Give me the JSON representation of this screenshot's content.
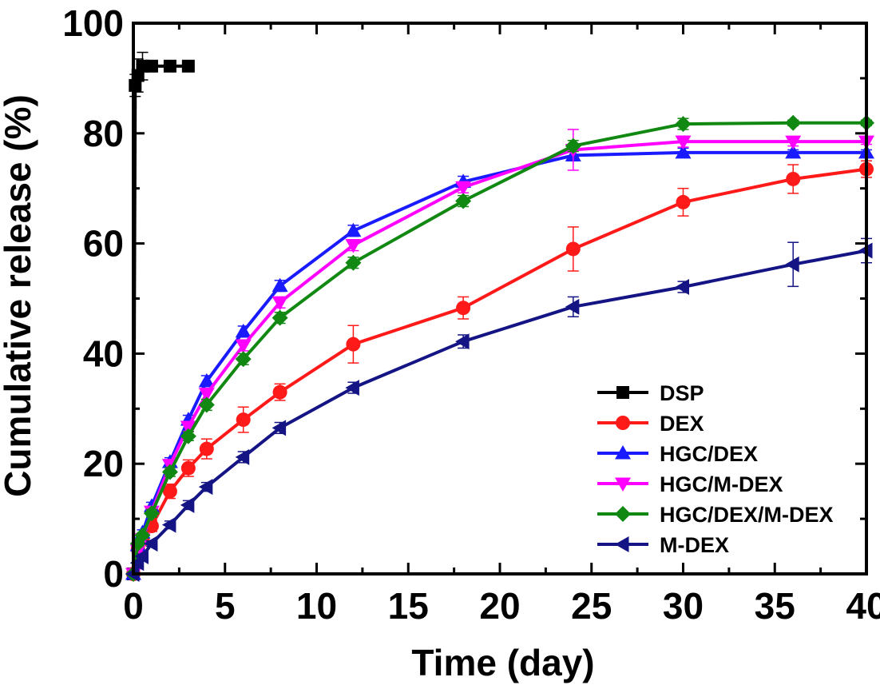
{
  "chart_data": {
    "type": "line",
    "title": "",
    "xlabel": "Time (day)",
    "ylabel": "Cumulative release (%)",
    "xlim": [
      0,
      40
    ],
    "ylim": [
      0,
      100
    ],
    "x_ticks": [
      0,
      5,
      10,
      15,
      20,
      25,
      30,
      35,
      40
    ],
    "y_ticks": [
      0,
      20,
      40,
      60,
      80,
      100
    ],
    "x_tick_labels": [
      "0",
      "5",
      "10",
      "15",
      "20",
      "25",
      "30",
      "35",
      "40"
    ],
    "y_tick_labels": [
      "0",
      "20",
      "40",
      "60",
      "80",
      "100"
    ],
    "grid": false,
    "legend_position": "bottom-right",
    "series": [
      {
        "name": "DSP",
        "color": "#000000",
        "marker": "square",
        "points": [
          [
            0,
            0
          ],
          [
            0.1,
            88.7
          ],
          [
            0.25,
            90.5
          ],
          [
            0.5,
            92.2
          ],
          [
            1,
            92.2
          ],
          [
            2,
            92.2
          ],
          [
            3,
            92.2
          ]
        ],
        "errors": [
          0,
          2,
          3,
          2.5,
          0.3,
          0.3,
          0.3
        ]
      },
      {
        "name": "DEX",
        "color": "#ff1a1a",
        "marker": "circle",
        "points": [
          [
            0,
            0
          ],
          [
            0.25,
            4.5
          ],
          [
            0.5,
            6.2
          ],
          [
            1,
            8.7
          ],
          [
            2,
            15
          ],
          [
            3,
            19.2
          ],
          [
            4,
            22.7
          ],
          [
            6,
            28
          ],
          [
            8,
            33
          ],
          [
            12,
            41.7
          ],
          [
            18,
            48.3
          ],
          [
            24,
            59
          ],
          [
            30,
            67.5
          ],
          [
            36,
            71.7
          ],
          [
            40,
            73.5
          ]
        ],
        "errors": [
          0,
          0.5,
          0.8,
          1,
          1.3,
          1.5,
          1.8,
          2.3,
          1.5,
          3.4,
          2,
          4,
          2.5,
          2.6,
          1.5
        ]
      },
      {
        "name": "HGC/DEX",
        "color": "#1a1aff",
        "marker": "triangle-up",
        "points": [
          [
            0,
            0
          ],
          [
            0.25,
            5.2
          ],
          [
            0.5,
            7.5
          ],
          [
            1,
            12.3
          ],
          [
            2,
            20.3
          ],
          [
            3,
            28
          ],
          [
            4,
            35
          ],
          [
            6,
            44
          ],
          [
            8,
            52.3
          ],
          [
            12,
            62.3
          ],
          [
            18,
            71.2
          ],
          [
            24,
            76
          ],
          [
            30,
            76.5
          ],
          [
            36,
            76.5
          ],
          [
            40,
            76.5
          ]
        ],
        "errors": [
          0,
          0.5,
          0.5,
          0.7,
          0.8,
          0.8,
          1,
          1,
          1,
          1,
          1,
          1,
          0.8,
          0.5,
          0.5
        ]
      },
      {
        "name": "HGC/M-DEX",
        "color": "#ff00ff",
        "marker": "triangle-down",
        "points": [
          [
            0,
            0
          ],
          [
            0.25,
            4.2
          ],
          [
            0.5,
            6.3
          ],
          [
            1,
            11.3
          ],
          [
            2,
            19.8
          ],
          [
            3,
            26.7
          ],
          [
            4,
            32.7
          ],
          [
            6,
            41.5
          ],
          [
            8,
            49.3
          ],
          [
            12,
            59.7
          ],
          [
            18,
            70.2
          ],
          [
            24,
            77
          ],
          [
            30,
            78.5
          ],
          [
            36,
            78.5
          ],
          [
            40,
            78.5
          ]
        ],
        "errors": [
          0,
          0.5,
          0.5,
          0.7,
          0.8,
          0.8,
          1,
          1,
          1,
          1,
          1,
          3.7,
          1,
          0.8,
          0.5
        ]
      },
      {
        "name": "HGC/DEX/M-DEX",
        "color": "#118811",
        "marker": "diamond",
        "points": [
          [
            0,
            0
          ],
          [
            0.25,
            5.5
          ],
          [
            0.5,
            7
          ],
          [
            1,
            11
          ],
          [
            2,
            18.5
          ],
          [
            3,
            25
          ],
          [
            4,
            30.7
          ],
          [
            6,
            39
          ],
          [
            8,
            46.5
          ],
          [
            12,
            56.5
          ],
          [
            18,
            67.7
          ],
          [
            24,
            77.7
          ],
          [
            30,
            81.7
          ],
          [
            36,
            81.9
          ],
          [
            40,
            81.9
          ]
        ],
        "errors": [
          0,
          0.5,
          0.5,
          0.7,
          0.8,
          0.8,
          1,
          1,
          1,
          1,
          1,
          1,
          1,
          0.5,
          0.5
        ]
      },
      {
        "name": "M-DEX",
        "color": "#141485",
        "marker": "triangle-left",
        "points": [
          [
            0,
            0
          ],
          [
            0.25,
            2
          ],
          [
            0.5,
            3.2
          ],
          [
            1,
            5.5
          ],
          [
            2,
            8.9
          ],
          [
            3,
            12.5
          ],
          [
            4,
            15.8
          ],
          [
            6,
            21.2
          ],
          [
            8,
            26.5
          ],
          [
            12,
            33.8
          ],
          [
            18,
            42.2
          ],
          [
            24,
            48.5
          ],
          [
            30,
            52.1
          ],
          [
            36,
            56.2
          ],
          [
            40,
            58.7
          ]
        ],
        "errors": [
          0,
          0.3,
          0.4,
          0.5,
          0.7,
          0.8,
          0.8,
          1,
          1,
          1,
          1.2,
          1.8,
          1,
          4,
          2.2
        ]
      }
    ]
  }
}
